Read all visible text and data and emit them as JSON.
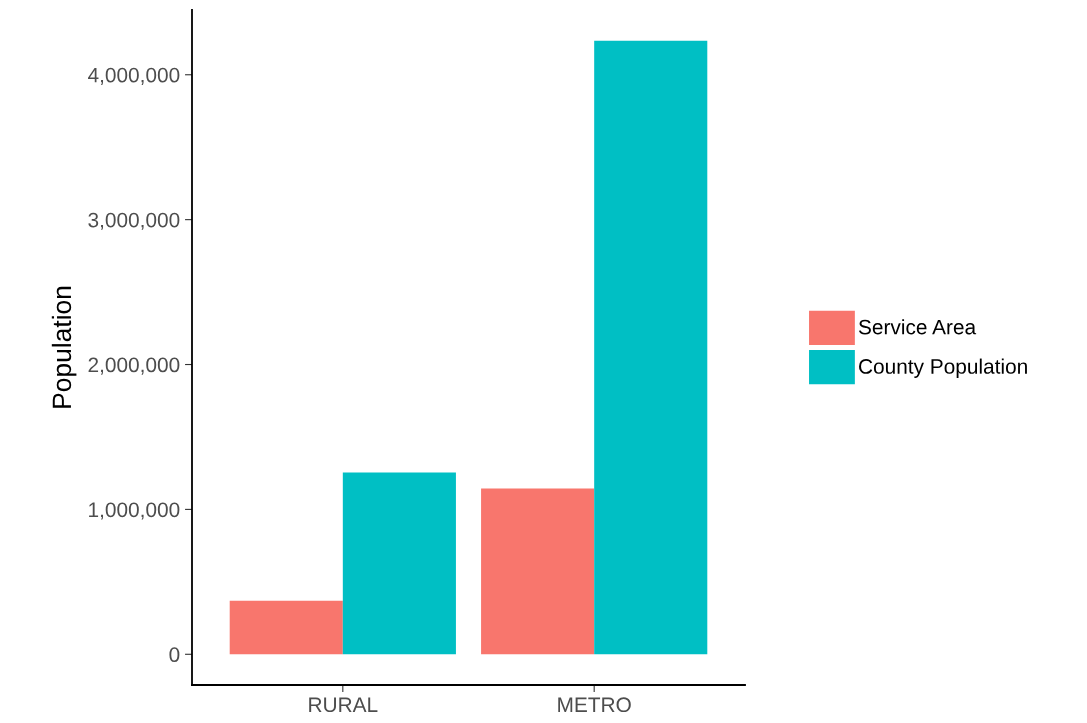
{
  "chart_data": {
    "type": "bar",
    "ylabel": "Population",
    "categories": [
      "RURAL",
      "METRO"
    ],
    "series": [
      {
        "name": "Service Area",
        "color": "#f8766d",
        "values": [
          370000,
          1145000
        ]
      },
      {
        "name": "County Population",
        "color": "#00bfc4",
        "values": [
          1255000,
          4235000
        ]
      }
    ],
    "ylim": [
      -212000,
      4447000
    ],
    "yticks": [
      {
        "value": 0,
        "label": "0"
      },
      {
        "value": 1000000,
        "label": "1,000,000"
      },
      {
        "value": 2000000,
        "label": "2,000,000"
      },
      {
        "value": 3000000,
        "label": "3,000,000"
      },
      {
        "value": 4000000,
        "label": "4,000,000"
      }
    ],
    "grid": false,
    "legend": "right"
  }
}
